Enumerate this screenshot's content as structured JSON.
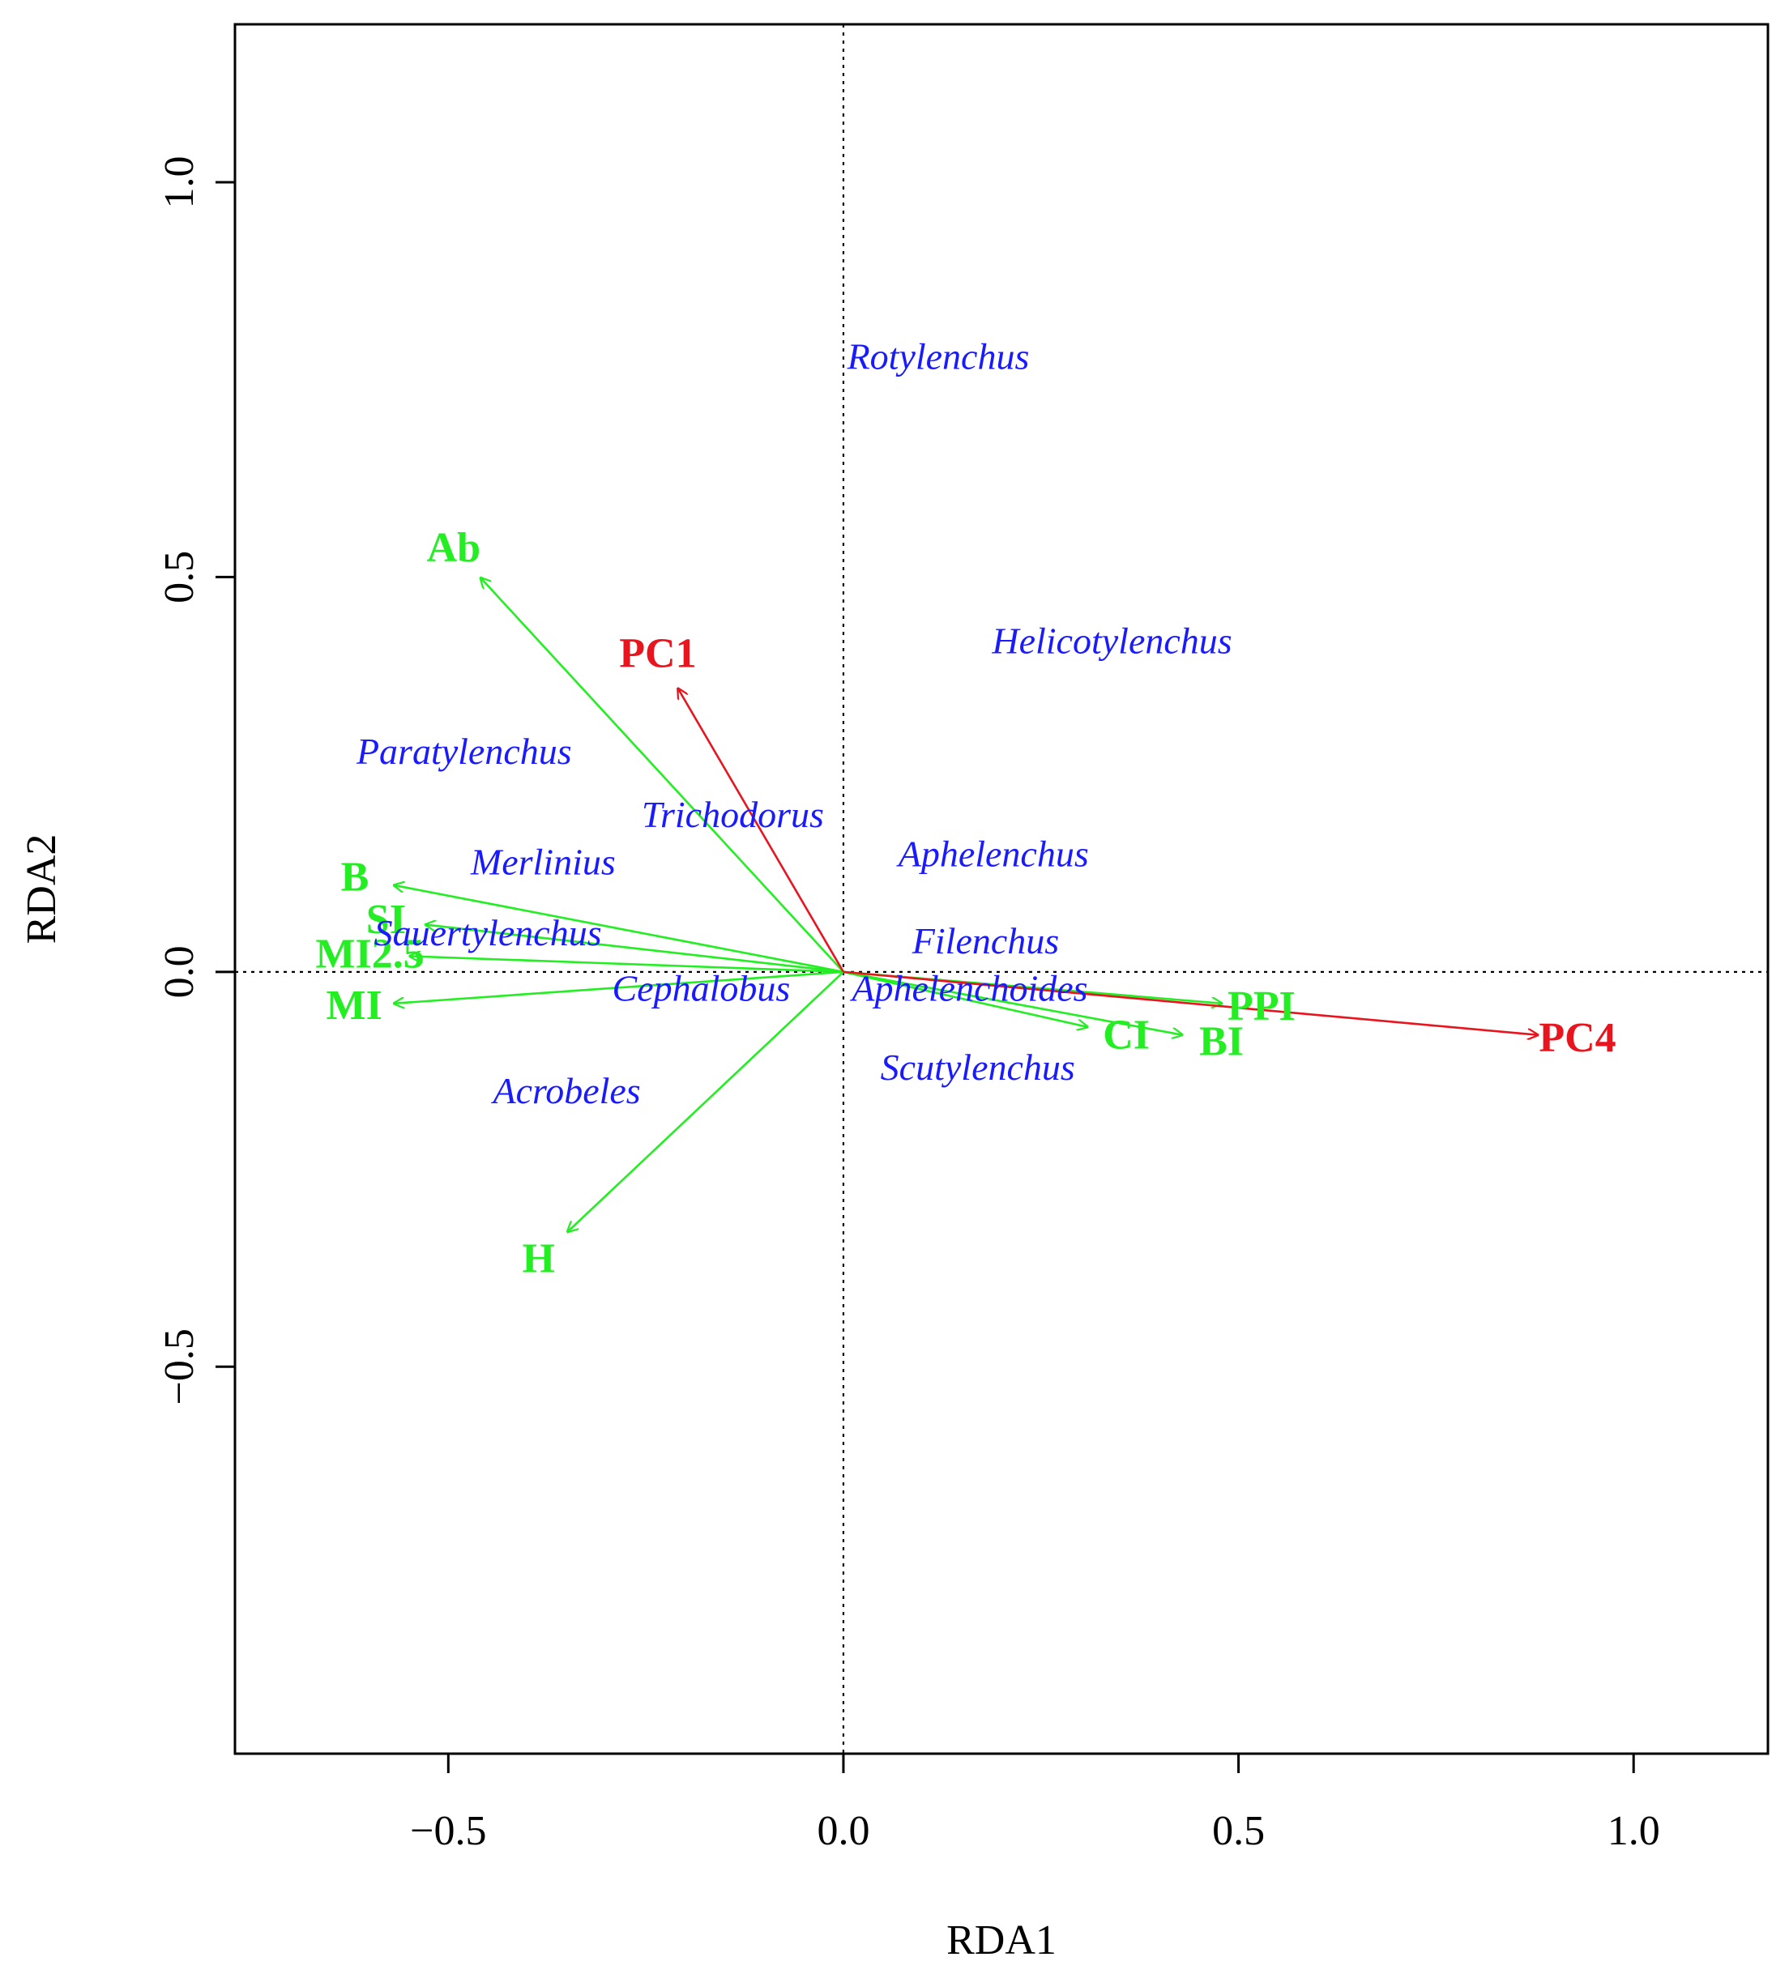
{
  "chart_data": {
    "type": "scatter",
    "subtype": "rda-biplot",
    "title": "",
    "xlabel": "RDA1",
    "ylabel": "RDA2",
    "xlim": [
      -0.77,
      1.17
    ],
    "ylim": [
      -0.99,
      1.2
    ],
    "xticks": [
      {
        "value": -0.5,
        "label": "−0.5"
      },
      {
        "value": 0.0,
        "label": "0.0"
      },
      {
        "value": 0.5,
        "label": "0.5"
      },
      {
        "value": 1.0,
        "label": "1.0"
      }
    ],
    "yticks": [
      {
        "value": -0.5,
        "label": "−0.5"
      },
      {
        "value": 0.0,
        "label": "0.0"
      },
      {
        "value": 0.5,
        "label": "0.5"
      },
      {
        "value": 1.0,
        "label": "1.0"
      }
    ],
    "reference_lines": {
      "x": 0,
      "y": 0,
      "style": "dotted"
    },
    "colors": {
      "species": "#1a1aff",
      "indices": "#22ee22",
      "predictors": "#e8141e",
      "axes": "#000000"
    },
    "species": [
      {
        "name": "Rotylenchus",
        "x": 0.12,
        "y": 0.78
      },
      {
        "name": "Helicotylenchus",
        "x": 0.34,
        "y": 0.42
      },
      {
        "name": "Paratylenchus",
        "x": -0.48,
        "y": 0.28
      },
      {
        "name": "Trichodorus",
        "x": -0.14,
        "y": 0.2
      },
      {
        "name": "Merlinius",
        "x": -0.38,
        "y": 0.14
      },
      {
        "name": "Aphelenchus",
        "x": 0.19,
        "y": 0.15
      },
      {
        "name": "Filenchus",
        "x": 0.18,
        "y": 0.04
      },
      {
        "name": "Sauertylenchus",
        "x": -0.45,
        "y": 0.05
      },
      {
        "name": "Cephalobus",
        "x": -0.18,
        "y": -0.02
      },
      {
        "name": "Aphelenchoides",
        "x": 0.16,
        "y": -0.02
      },
      {
        "name": "Scutylenchus",
        "x": 0.17,
        "y": -0.12
      },
      {
        "name": "Acrobeles",
        "x": -0.35,
        "y": -0.15
      }
    ],
    "index_vectors": [
      {
        "name": "Ab",
        "x": -0.46,
        "y": 0.5
      },
      {
        "name": "B",
        "x": -0.57,
        "y": 0.11
      },
      {
        "name": "SI",
        "x": -0.53,
        "y": 0.06
      },
      {
        "name": "MI2.5",
        "x": -0.55,
        "y": 0.02
      },
      {
        "name": "MI",
        "x": -0.57,
        "y": -0.04
      },
      {
        "name": "H",
        "x": -0.35,
        "y": -0.33
      },
      {
        "name": "PPI",
        "x": 0.48,
        "y": -0.04
      },
      {
        "name": "CI",
        "x": 0.31,
        "y": -0.07
      },
      {
        "name": "BI",
        "x": 0.43,
        "y": -0.08
      }
    ],
    "predictor_vectors": [
      {
        "name": "PC1",
        "x": -0.21,
        "y": 0.36
      },
      {
        "name": "PC4",
        "x": 0.88,
        "y": -0.08
      }
    ]
  }
}
